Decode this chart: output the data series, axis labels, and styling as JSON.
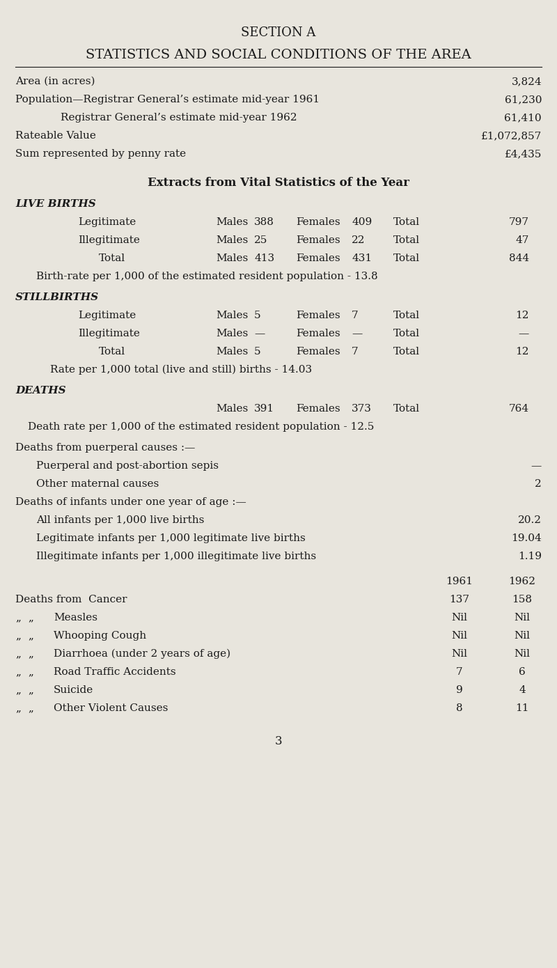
{
  "bg_color": "#e8e5dd",
  "text_color": "#1a1a1a",
  "title1": "SECTION A",
  "title2": "STATISTICS AND SOCIAL CONDITIONS OF THE AREA",
  "section_lines": [
    {
      "label": "Area (in acres)",
      "value": "3,824",
      "indent": 0
    },
    {
      "label": "Population—Registrar General’s estimate mid-year 1961",
      "value": "61,230",
      "indent": 0
    },
    {
      "label": "Registrar General’s estimate mid-year 1962",
      "value": "61,410",
      "indent": 1
    },
    {
      "label": "Rateable Value",
      "value": "£1,072,857",
      "indent": 0
    },
    {
      "label": "Sum represented by penny rate",
      "value": "£4,435",
      "indent": 0
    }
  ],
  "extracts_title": "Extracts from Vital Statistics of the Year",
  "live_births_header": "LIVE BIRTHS",
  "live_births_rows": [
    {
      "label": "Legitimate",
      "males": "388",
      "females": "409",
      "total": "797",
      "indent": 1
    },
    {
      "label": "Illegitimate",
      "males": "25",
      "females": "22",
      "total": "47",
      "indent": 1
    },
    {
      "label": "Total",
      "males": "413",
      "females": "431",
      "total": "844",
      "indent": 2
    }
  ],
  "birth_rate_note": "Birth-rate per 1,000 of the estimated resident population - 13.8",
  "stillbirths_header": "STILLBIRTHS",
  "stillbirths_rows": [
    {
      "label": "Legitimate",
      "males": "5",
      "females": "7",
      "total": "12",
      "indent": 1
    },
    {
      "label": "Illegitimate",
      "males": "—",
      "females": "—",
      "total": "—",
      "indent": 1
    },
    {
      "label": "Total",
      "males": "5",
      "females": "7",
      "total": "12",
      "indent": 2
    }
  ],
  "stillbirth_rate_note": "Rate per 1,000 total (live and still) births - 14.03",
  "deaths_header": "DEATHS",
  "deaths_row": {
    "males": "391",
    "females": "373",
    "total": "764"
  },
  "death_rate_note": "Death rate per 1,000 of the estimated resident population - 12.5",
  "puerperal_header": "Deaths from puerperal causes :—",
  "puerperal_rows": [
    {
      "label": "Puerperal and post-abortion sepis",
      "value": "—"
    },
    {
      "label": "Other maternal causes",
      "value": "2"
    }
  ],
  "infant_header": "Deaths of infants under one year of age :—",
  "infant_rows": [
    {
      "label": "All infants per 1,000 live births",
      "value": "20.2"
    },
    {
      "label": "Legitimate infants per 1,000 legitimate live births",
      "value": "19.04"
    },
    {
      "label": "Illegitimate infants per 1,000 illegitimate live births",
      "value": "1.19"
    }
  ],
  "year_header_1961": "1961",
  "year_header_1962": "1962",
  "cause_rows": [
    {
      "prefix": "Deaths from",
      "label": "Cancer",
      "v1961": "137",
      "v1962": "158"
    },
    {
      "prefix": ",,",
      "label": "Measles",
      "v1961": "Nil",
      "v1962": "Nil"
    },
    {
      "prefix": ",,",
      "label": "Whooping Cough",
      "v1961": "Nil",
      "v1962": "Nil"
    },
    {
      "prefix": ",,",
      "label": "Diarrhoea (under 2 years of age)",
      "v1961": "Nil",
      "v1962": "Nil"
    },
    {
      "prefix": ",,",
      "label": "Road Traffic Accidents",
      "v1961": "7",
      "v1962": "6"
    },
    {
      "prefix": ",,",
      "label": "Suicide",
      "v1961": "9",
      "v1962": "4"
    },
    {
      "prefix": ",,",
      "label": "Other Violent Causes",
      "v1961": "8",
      "v1962": "11"
    }
  ],
  "page_number": "3",
  "fig_width": 8.0,
  "fig_height": 13.9,
  "dpi": 100
}
